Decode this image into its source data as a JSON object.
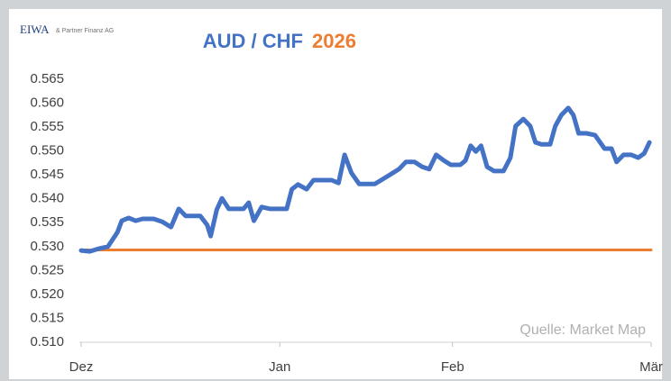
{
  "chart_data": {
    "type": "line",
    "logo": {
      "name": "EIWA",
      "subtitle": "& Partner Finanz AG"
    },
    "title": "AUD / CHF",
    "title_year": "2026",
    "source": "Quelle: Market Map",
    "xlim": [
      0,
      66
    ],
    "xticks": [
      {
        "value": 0,
        "label": "Dez"
      },
      {
        "value": 23,
        "label": "Jan"
      },
      {
        "value": 43,
        "label": "Feb"
      },
      {
        "value": 66,
        "label": "Mär"
      }
    ],
    "ylim": [
      0.51,
      0.565
    ],
    "yticks": [
      {
        "value": 0.51,
        "label": "0.510"
      },
      0.515,
      {
        "value": 0.52,
        "label": "0.520"
      },
      0.525,
      {
        "value": 0.53,
        "label": "0.530"
      },
      0.535,
      {
        "value": 0.54,
        "label": "0.540"
      },
      0.545,
      {
        "value": 0.55,
        "label": "0.550"
      },
      0.555,
      {
        "value": 0.56,
        "label": "0.560"
      },
      0.565
    ],
    "series": [
      {
        "color": "#4472c4",
        "x": [
          0,
          1.0,
          2.1,
          3.1,
          4.2,
          4.7,
          5.5,
          6.3,
          7.1,
          8.4,
          9.4,
          10.4,
          11.3,
          12.1,
          12.9,
          13.8,
          14.6,
          15.0,
          15.7,
          16.3,
          17.1,
          18.0,
          18.8,
          19.4,
          20.0,
          20.9,
          21.9,
          23.0,
          23.8,
          24.4,
          25.1,
          26.1,
          26.9,
          28.0,
          29.0,
          29.8,
          30.5,
          31.3,
          32.2,
          33.2,
          34.0,
          35.1,
          35.9,
          36.8,
          37.6,
          38.6,
          39.5,
          40.3,
          41.1,
          42.0,
          42.8,
          43.9,
          44.5,
          45.1,
          45.7,
          46.3,
          47.0,
          47.8,
          48.9,
          49.7,
          50.3,
          51.2,
          52.0,
          52.6,
          53.3,
          54.3,
          54.9,
          55.6,
          56.4,
          57.0,
          57.6,
          58.5,
          59.5,
          60.6,
          61.4,
          62.0,
          62.8,
          63.7,
          64.5,
          65.2,
          65.8
        ],
        "values": [
          0.5292,
          0.529,
          0.5296,
          0.53,
          0.533,
          0.5354,
          0.536,
          0.5354,
          0.5358,
          0.5358,
          0.5352,
          0.5341,
          0.5379,
          0.5364,
          0.5364,
          0.5364,
          0.5345,
          0.5322,
          0.5377,
          0.5401,
          0.5379,
          0.5379,
          0.5379,
          0.5392,
          0.5354,
          0.5383,
          0.5379,
          0.5379,
          0.5379,
          0.542,
          0.543,
          0.542,
          0.5439,
          0.5439,
          0.5439,
          0.5433,
          0.5492,
          0.5454,
          0.5431,
          0.5431,
          0.5431,
          0.5443,
          0.5452,
          0.5462,
          0.5477,
          0.5477,
          0.5467,
          0.5462,
          0.5492,
          0.548,
          0.5471,
          0.5471,
          0.548,
          0.5511,
          0.5499,
          0.5511,
          0.5467,
          0.5458,
          0.5458,
          0.5486,
          0.5552,
          0.5567,
          0.5552,
          0.5518,
          0.5514,
          0.5514,
          0.5552,
          0.5575,
          0.559,
          0.5575,
          0.5537,
          0.5537,
          0.5533,
          0.5505,
          0.5505,
          0.5477,
          0.5492,
          0.5492,
          0.5486,
          0.5495,
          0.5518
        ]
      },
      {
        "color": "#ed7d31",
        "x": [
          0,
          66
        ],
        "values": [
          0.5293,
          0.5293
        ]
      }
    ]
  }
}
